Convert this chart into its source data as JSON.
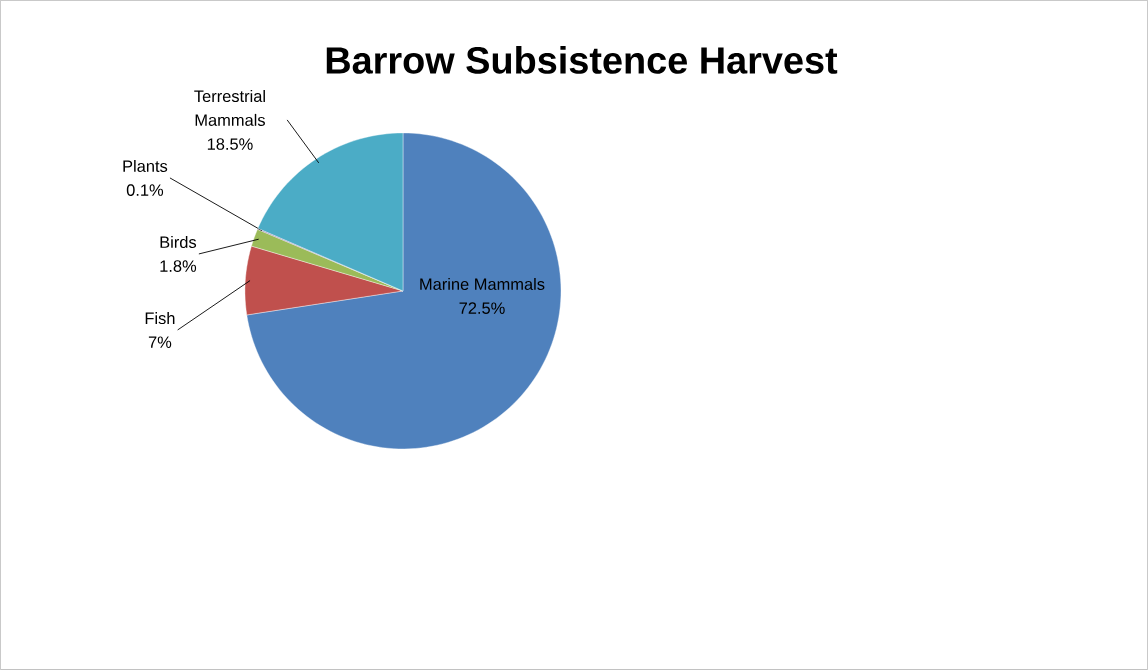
{
  "chart_data": {
    "type": "pie",
    "title": "Barrow Subsistence Harvest",
    "categories": [
      "Marine Mammals",
      "Fish",
      "Birds",
      "Plants",
      "Terrestrial Mammals"
    ],
    "values": [
      72.5,
      7,
      1.8,
      0.1,
      18.5
    ],
    "colors": [
      "#4f81bd",
      "#c0504d",
      "#9bbb59",
      "#8064a2",
      "#4bacc6"
    ],
    "value_labels": [
      "72.5%",
      "7%",
      "1.8%",
      "0.1%",
      "18.5%"
    ]
  }
}
